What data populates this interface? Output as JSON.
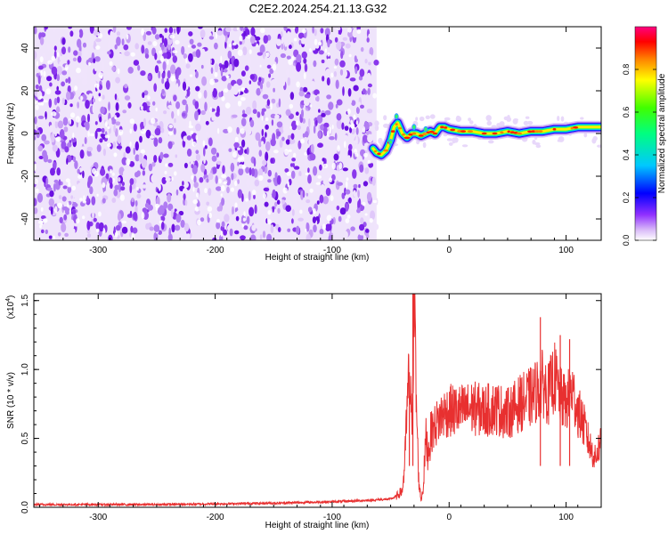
{
  "title": "C2E2.2024.254.21.13.G32",
  "chart_data": [
    {
      "type": "heatmap",
      "title": "C2E2.2024.254.21.13.G32",
      "xlabel": "Height of straight line (km)",
      "ylabel": "Frequency (Hz)",
      "xlim": [
        -355,
        130
      ],
      "ylim": [
        -50,
        50
      ],
      "xticks": [
        -300,
        -200,
        -100,
        0,
        100
      ],
      "xtick_labels": [
        "-300",
        "-200",
        "-100",
        "0",
        "100"
      ],
      "yticks": [
        -40,
        -20,
        0,
        20,
        40
      ],
      "ytick_labels": [
        "-40",
        "-20",
        "0",
        "20",
        "40"
      ],
      "noise_region_x": [
        -355,
        -62
      ],
      "ridge": {
        "x": [
          -65,
          -62,
          -58,
          -54,
          -50,
          -47,
          -44,
          -40,
          -36,
          -32,
          -28,
          -24,
          -20,
          -16,
          -12,
          -8,
          -4,
          0,
          10,
          20,
          30,
          40,
          50,
          60,
          70,
          80,
          90,
          100,
          110,
          120,
          130
        ],
        "y": [
          -7,
          -9,
          -10,
          -8,
          -3,
          3,
          5,
          0,
          -2,
          0,
          0,
          -1,
          0,
          1,
          0,
          3,
          3,
          2,
          1,
          1,
          0,
          0,
          1,
          0,
          1,
          1,
          2,
          2,
          3,
          3,
          3
        ]
      },
      "colorbar": {
        "label": "Normalized spectral amplitude",
        "range": [
          0,
          1
        ],
        "ticks": [
          0.0,
          0.2,
          0.4,
          0.6,
          0.8
        ],
        "tick_labels": [
          "0.0",
          "0.2",
          "0.4",
          "0.6",
          "0.8"
        ],
        "colors": [
          "#ffffff",
          "#b888f0",
          "#8000ff",
          "#0000ff",
          "#00c0ff",
          "#00ff80",
          "#00ff00",
          "#ffff00",
          "#ff8000",
          "#ff0000",
          "#ff00a0"
        ]
      }
    },
    {
      "type": "line",
      "xlabel": "Height of straight line (km)",
      "ylabel": "SNR (10 * v/v)",
      "y_multiplier": "(x10",
      "y_multiplier_exp": "4",
      "y_multiplier_close": ")",
      "xlim": [
        -355,
        130
      ],
      "ylim": [
        0,
        1.55
      ],
      "xticks": [
        -300,
        -200,
        -100,
        0,
        100
      ],
      "xtick_labels": [
        "-300",
        "-200",
        "-100",
        "0",
        "100"
      ],
      "yticks": [
        0.0,
        0.5,
        1.0,
        1.5
      ],
      "ytick_labels": [
        "0.0",
        "0.5",
        "1.0",
        "1.5"
      ],
      "line_color": "#e83030",
      "series": [
        {
          "name": "SNR",
          "x": [
            -355,
            -300,
            -250,
            -200,
            -150,
            -100,
            -70,
            -50,
            -45,
            -40,
            -38,
            -36,
            -34,
            -32,
            -30,
            -28,
            -26,
            -24,
            -22,
            -20,
            -18,
            -15,
            -10,
            -5,
            0,
            10,
            20,
            30,
            40,
            50,
            60,
            70,
            75,
            80,
            85,
            90,
            95,
            100,
            105,
            110,
            115,
            120,
            125,
            130
          ],
          "y": [
            0.02,
            0.02,
            0.02,
            0.025,
            0.03,
            0.04,
            0.05,
            0.06,
            0.08,
            0.12,
            0.3,
            0.7,
            0.95,
            0.6,
            1.55,
            0.75,
            0.2,
            0.05,
            0.15,
            0.5,
            0.4,
            0.55,
            0.62,
            0.68,
            0.7,
            0.7,
            0.72,
            0.7,
            0.72,
            0.68,
            0.75,
            0.8,
            0.85,
            0.9,
            0.82,
            0.95,
            0.8,
            0.75,
            0.85,
            0.7,
            0.6,
            0.45,
            0.35,
            0.5
          ]
        }
      ]
    }
  ]
}
